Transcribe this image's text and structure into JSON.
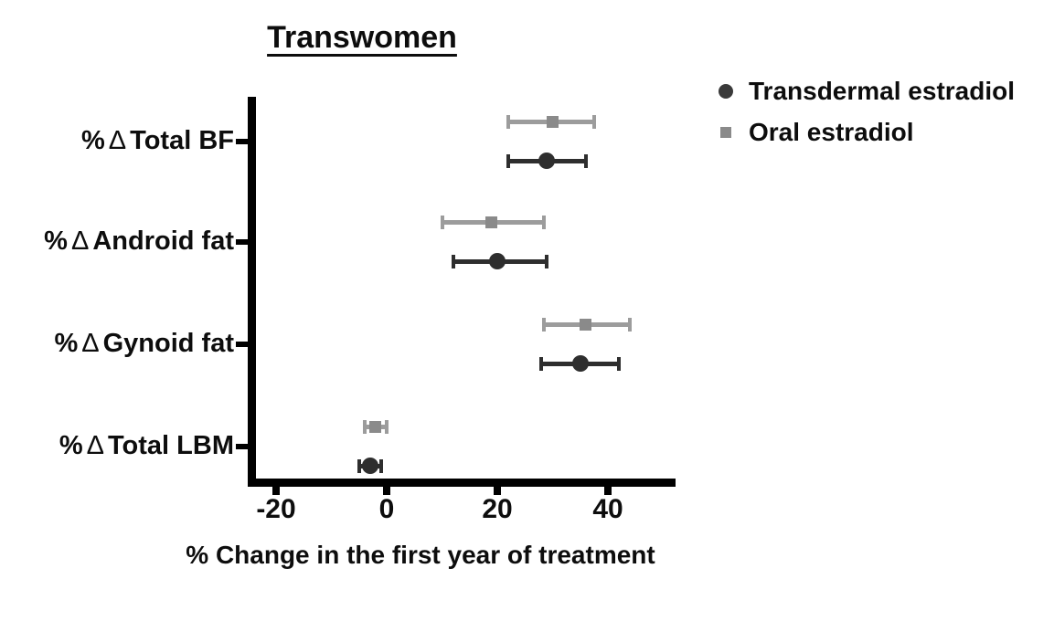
{
  "title": "Transwomen",
  "chart_data": {
    "type": "scatter",
    "title": "Transwomen",
    "xlabel": "% Change in the first year of treatment",
    "ylabel": "",
    "xlim": [
      -25,
      52
    ],
    "grid": false,
    "legend_position": "top-right",
    "categories": [
      {
        "percent": "%",
        "delta": "Δ",
        "name": "Total BF"
      },
      {
        "percent": "%",
        "delta": "Δ",
        "name": "Android fat"
      },
      {
        "percent": "%",
        "delta": "Δ",
        "name": "Gynoid fat"
      },
      {
        "percent": "%",
        "delta": "Δ",
        "name": "Total LBM"
      }
    ],
    "xticks": [
      {
        "value": -20,
        "label": "-20"
      },
      {
        "value": 0,
        "label": "0"
      },
      {
        "value": 20,
        "label": "20"
      },
      {
        "value": 40,
        "label": "40"
      }
    ],
    "series": [
      {
        "name": "Transdermal estradiol",
        "marker": "circle",
        "color": "#2e2e2e",
        "line_color": "#2e2e2e",
        "values": [
          29,
          20,
          35,
          -3
        ],
        "ci_low": [
          22,
          12,
          28,
          -5
        ],
        "ci_high": [
          36,
          29,
          42,
          -1
        ]
      },
      {
        "name": "Oral estradiol",
        "marker": "square",
        "color": "#8a8a8a",
        "line_color": "#9c9c9c",
        "values": [
          30,
          19,
          36,
          -2
        ],
        "ci_low": [
          22,
          10,
          28.5,
          -4
        ],
        "ci_high": [
          37.5,
          28.5,
          44,
          0
        ]
      }
    ],
    "axis_color": "#000000",
    "text_color": "#0d0d0d"
  }
}
